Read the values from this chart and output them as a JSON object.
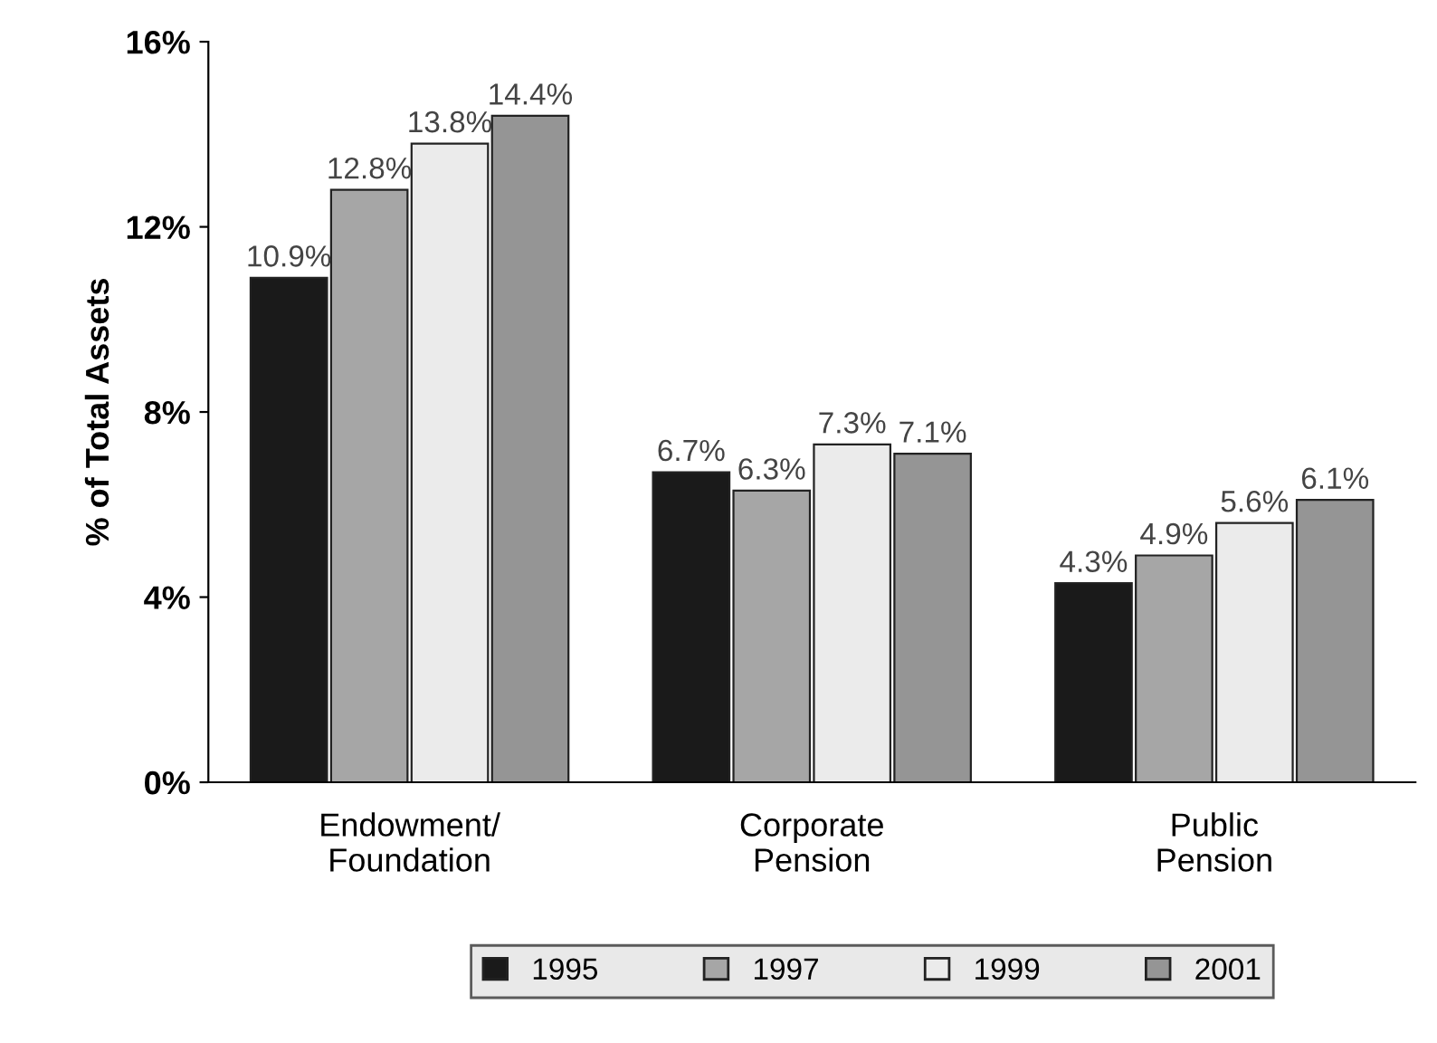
{
  "chart_data": {
    "type": "bar",
    "ylabel": "% of Total Assets",
    "categories": [
      "Endowment/\nFoundation",
      "Corporate\nPension",
      "Public\nPension"
    ],
    "series": [
      {
        "name": "1995",
        "color": "#1a1a1a",
        "values": [
          10.9,
          6.7,
          4.3
        ],
        "value_labels": [
          "10.9%",
          "6.7%",
          "4.3%"
        ]
      },
      {
        "name": "1997",
        "color": "#a6a6a6",
        "values": [
          12.8,
          6.3,
          4.9
        ],
        "value_labels": [
          "12.8%",
          "6.3%",
          "4.9%"
        ]
      },
      {
        "name": "1999",
        "color": "#ebebeb",
        "values": [
          13.8,
          7.3,
          5.6
        ],
        "value_labels": [
          "13.8%",
          "7.3%",
          "5.6%"
        ]
      },
      {
        "name": "2001",
        "color": "#959595",
        "values": [
          14.4,
          7.1,
          6.1
        ],
        "value_labels": [
          "14.4%",
          "7.1%",
          "6.1%"
        ]
      }
    ],
    "ylim": [
      0,
      16
    ],
    "yticks": [
      {
        "value": 0,
        "label": "0%"
      },
      {
        "value": 4,
        "label": "4%"
      },
      {
        "value": 8,
        "label": "8%"
      },
      {
        "value": 12,
        "label": "12%"
      },
      {
        "value": 16,
        "label": "16%"
      }
    ],
    "grid": false,
    "legend": "bottom"
  }
}
